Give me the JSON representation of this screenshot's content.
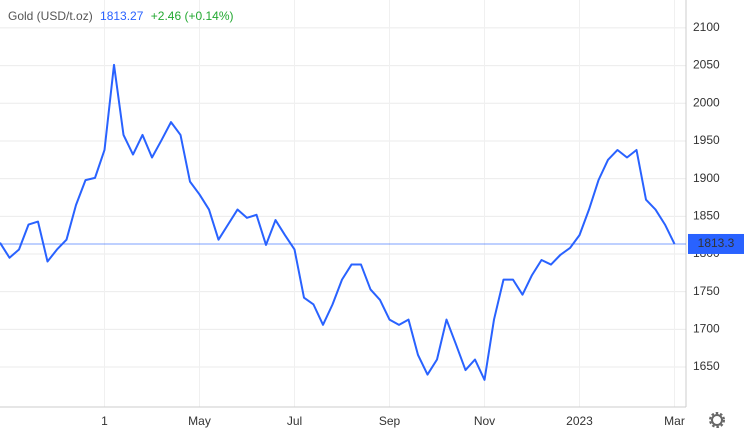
{
  "chart_data": {
    "type": "line",
    "header": {
      "name": "Gold (USD/t.oz)",
      "price": "1813.27",
      "change": "+2.46 (+0.14%)"
    },
    "categories": [
      null,
      null,
      null,
      null,
      null,
      null,
      null,
      null,
      null,
      null,
      null,
      "1",
      null,
      null,
      null,
      null,
      null,
      null,
      null,
      null,
      null,
      "May",
      null,
      null,
      null,
      null,
      null,
      null,
      null,
      null,
      null,
      "Jul",
      null,
      null,
      null,
      null,
      null,
      null,
      null,
      null,
      null,
      "Sep",
      null,
      null,
      null,
      null,
      null,
      null,
      null,
      null,
      null,
      "Nov",
      null,
      null,
      null,
      null,
      null,
      null,
      null,
      null,
      null,
      "2023",
      null,
      null,
      null,
      null,
      null,
      null,
      null,
      null,
      null,
      "Mar"
    ],
    "series": [
      {
        "name": "Gold",
        "color": "#2962ff",
        "values": [
          1815,
          1795,
          1806,
          1839,
          1843,
          1790,
          1806,
          1819,
          1865,
          1898,
          1901,
          1938,
          2051,
          1958,
          1932,
          1958,
          1928,
          1951,
          1975,
          1958,
          1896,
          1879,
          1859,
          1819,
          1839,
          1859,
          1848,
          1852,
          1812,
          1845,
          1825,
          1806,
          1742,
          1733,
          1706,
          1733,
          1766,
          1786,
          1786,
          1753,
          1739,
          1713,
          1706,
          1713,
          1666,
          1640,
          1660,
          1713,
          1680,
          1646,
          1660,
          1633,
          1713,
          1766,
          1766,
          1746,
          1772,
          1792,
          1786,
          1799,
          1808,
          1825,
          1859,
          1898,
          1925,
          1938,
          1928,
          1938,
          1872,
          1859,
          1839,
          1813.27
        ]
      }
    ],
    "last_value": 1813.3,
    "ylim": [
      1597,
      2137
    ],
    "yticks": [
      1650,
      1700,
      1750,
      1800,
      1850,
      1900,
      1950,
      2000,
      2050,
      2100
    ],
    "grid": true
  }
}
